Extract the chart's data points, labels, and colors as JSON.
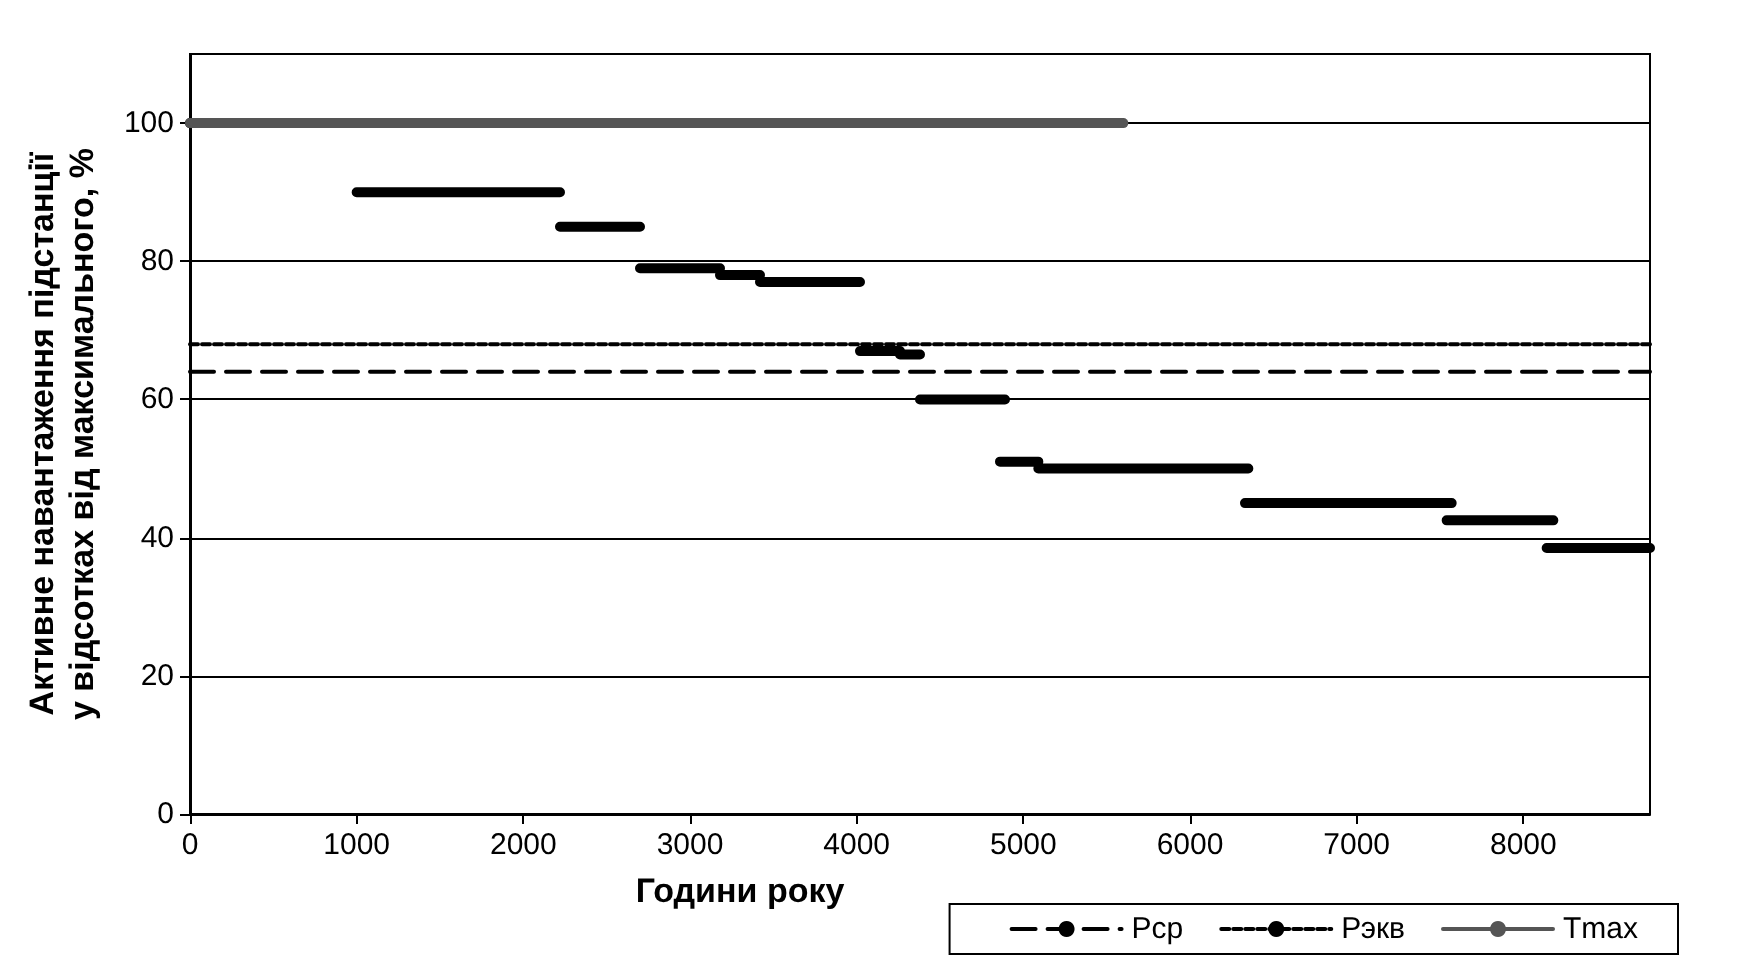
{
  "chart_data": {
    "type": "line",
    "xlabel": "Години року",
    "ylabel": "Активне навантаження підстанції\nу відсотках від максимального, %",
    "xlim": [
      0,
      8760
    ],
    "xticks": [
      0,
      1000,
      2000,
      3000,
      4000,
      5000,
      6000,
      7000,
      8000
    ],
    "ylim": [
      0,
      110
    ],
    "yticks": [
      0,
      20,
      40,
      60,
      80,
      100
    ],
    "grid": "y",
    "legend": "bottom right",
    "marker": "none",
    "series": [
      {
        "color": "#000000",
        "line_style": "solid",
        "x": [
          0,
          1000,
          null,
          1000,
          2220,
          null,
          2220,
          2700,
          null,
          2700,
          3180,
          null,
          3180,
          3420,
          null,
          3420,
          4020,
          null,
          4020,
          4260,
          null,
          4260,
          4380,
          null,
          4380,
          4890,
          null,
          4860,
          5090,
          null,
          5090,
          6350,
          null,
          6330,
          7570,
          null,
          7540,
          8180,
          null,
          8140,
          8760
        ],
        "values": [
          100,
          100,
          null,
          90,
          90,
          null,
          85,
          85,
          null,
          79,
          79,
          null,
          78,
          78,
          null,
          77,
          77,
          null,
          67,
          67,
          null,
          66.5,
          66.5,
          null,
          60,
          60,
          null,
          51,
          51,
          null,
          50,
          50,
          null,
          45,
          45,
          null,
          42.5,
          42.5,
          null,
          38.5,
          38.5
        ]
      },
      {
        "name": "Рср",
        "color": "#000000",
        "line_style": "dashed",
        "x": [
          0,
          8760
        ],
        "values": [
          64,
          64
        ]
      },
      {
        "name": "Рэкв",
        "color": "#000000",
        "line_style": "dotted",
        "x": [
          0,
          8760
        ],
        "values": [
          68,
          68
        ]
      },
      {
        "name": "Tmax",
        "color": "#555555",
        "line_style": "solid",
        "x": [
          0,
          5600
        ],
        "values": [
          100,
          100
        ]
      }
    ]
  }
}
